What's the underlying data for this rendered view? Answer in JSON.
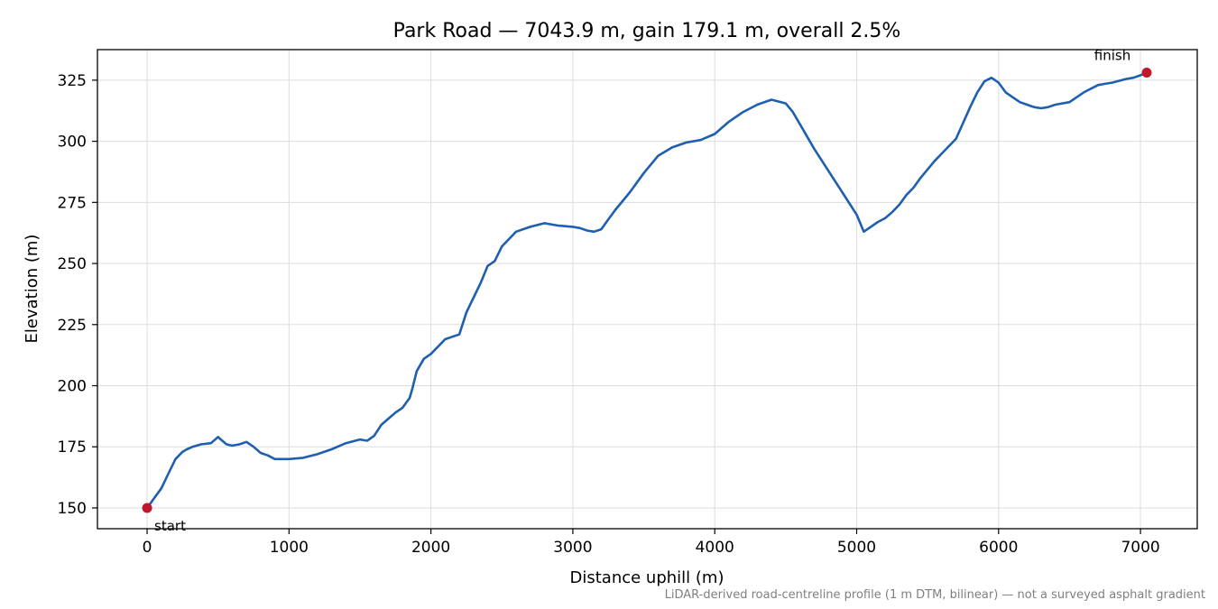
{
  "chart_data": {
    "type": "line",
    "title": "Park Road — 7043.9 m, gain 179.1 m, overall 2.5%",
    "xlabel": "Distance uphill (m)",
    "ylabel": "Elevation (m)",
    "xlim": [
      -350,
      7400
    ],
    "ylim": [
      141.5,
      337.5
    ],
    "xticks": [
      0,
      1000,
      2000,
      3000,
      4000,
      5000,
      6000,
      7000
    ],
    "yticks": [
      150,
      175,
      200,
      225,
      250,
      275,
      300,
      325
    ],
    "grid": true,
    "line_color": "#1f5fb0",
    "marker_color": "#c0182a",
    "series": [
      {
        "x": [
          0,
          50,
          100,
          150,
          200,
          250,
          280,
          320,
          380,
          450,
          500,
          520,
          560,
          600,
          650,
          700,
          750,
          800,
          850,
          900,
          950,
          1000,
          1100,
          1200,
          1300,
          1400,
          1500,
          1550,
          1600,
          1650,
          1700,
          1750,
          1800,
          1850,
          1870,
          1900,
          1950,
          2000,
          2050,
          2100,
          2150,
          2200,
          2250,
          2300,
          2350,
          2400,
          2450,
          2500,
          2550,
          2600,
          2700,
          2800,
          2900,
          3000,
          3050,
          3100,
          3150,
          3200,
          3250,
          3300,
          3400,
          3500,
          3600,
          3700,
          3800,
          3900,
          4000,
          4100,
          4200,
          4300,
          4400,
          4500,
          4550,
          4600,
          4700,
          4800,
          4900,
          5000,
          5050,
          5100,
          5150,
          5200,
          5250,
          5300,
          5350,
          5400,
          5450,
          5500,
          5550,
          5600,
          5700,
          5800,
          5850,
          5900,
          5950,
          6000,
          6050,
          6100,
          6150,
          6200,
          6250,
          6300,
          6350,
          6400,
          6500,
          6600,
          6700,
          6750,
          6800,
          6900,
          6950,
          7000,
          7043.9
        ],
        "y": [
          150,
          154,
          158,
          164,
          170,
          173,
          174,
          175,
          176,
          176.5,
          179,
          178,
          176,
          175.5,
          176,
          177,
          175,
          172.5,
          171.5,
          170,
          170,
          170,
          170.5,
          172,
          174,
          176.5,
          178,
          177.5,
          179.5,
          184,
          186.5,
          189,
          191,
          195,
          199,
          206,
          211,
          213,
          216,
          219,
          220,
          221,
          230,
          236,
          242,
          249,
          251,
          257,
          260,
          263,
          265,
          266.5,
          265.5,
          265,
          264.5,
          263.5,
          263,
          264,
          268,
          272,
          279,
          287,
          294,
          297.5,
          299.5,
          300.5,
          303,
          308,
          312,
          315,
          317,
          315.5,
          312,
          307,
          297,
          288,
          279,
          270,
          263,
          265,
          267,
          268.5,
          271,
          274,
          278,
          281,
          285,
          288.5,
          292,
          295,
          301,
          314,
          320,
          324.5,
          326,
          324,
          320,
          318,
          316,
          315,
          314,
          313.5,
          314,
          315,
          316,
          320,
          323,
          323.5,
          324,
          325.5,
          326,
          327,
          328.1
        ]
      }
    ],
    "annotations": [
      {
        "text": "start",
        "x": 0,
        "y": 150
      },
      {
        "text": "finish",
        "x": 7043.9,
        "y": 328.1
      }
    ],
    "footnote": "LiDAR-derived road-centreline profile (1 m DTM, bilinear) — not a surveyed asphalt gradient"
  }
}
